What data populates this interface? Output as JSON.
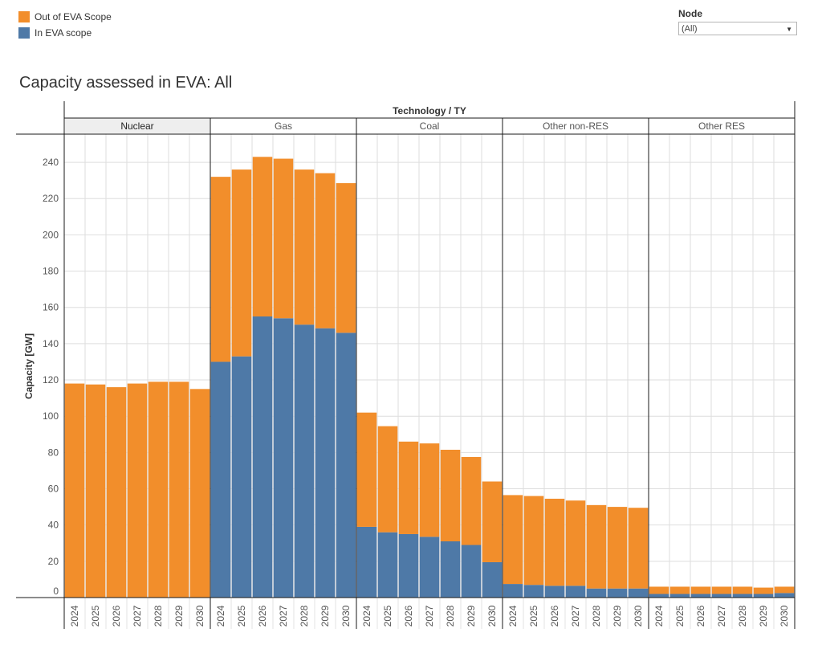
{
  "legend": {
    "items": [
      {
        "label": "Out of EVA Scope",
        "color": "#f28e2b"
      },
      {
        "label": "In EVA scope",
        "color": "#4e79a7"
      }
    ]
  },
  "filter": {
    "label": "Node",
    "value": "(All)",
    "icon": "dropdown-arrow-icon"
  },
  "title": "Capacity assessed in EVA: All",
  "chart_data": {
    "type": "bar",
    "stacked": true,
    "header": "Technology / TY",
    "ylabel": "Capacity [GW]",
    "ylim": [
      0,
      255
    ],
    "yticks": [
      0,
      20,
      40,
      60,
      80,
      100,
      120,
      140,
      160,
      180,
      200,
      220,
      240
    ],
    "grid": true,
    "legend_position": "top-left",
    "groups": [
      "Nuclear",
      "Gas",
      "Coal",
      "Other non-RES",
      "Other RES"
    ],
    "highlighted_group": "Nuclear",
    "years": [
      "2024",
      "2025",
      "2026",
      "2027",
      "2028",
      "2029",
      "2030"
    ],
    "series": [
      {
        "name": "In EVA scope",
        "color": "#4e79a7",
        "values": [
          [
            0,
            0,
            0,
            0,
            0,
            0,
            0
          ],
          [
            130,
            133,
            155,
            154,
            150.5,
            148.5,
            146
          ],
          [
            39,
            36,
            35,
            33.5,
            31,
            29,
            19.5
          ],
          [
            7.5,
            7,
            6.5,
            6.5,
            5,
            5,
            5
          ],
          [
            2,
            2,
            2,
            2,
            2,
            2,
            2.5
          ]
        ]
      },
      {
        "name": "Out of EVA Scope",
        "color": "#f28e2b",
        "values": [
          [
            118,
            117.5,
            116,
            118,
            119,
            119,
            115
          ],
          [
            102,
            103,
            88,
            88,
            85.5,
            85.5,
            82.5
          ],
          [
            63,
            58.5,
            51,
            51.5,
            50.5,
            48.5,
            44.5
          ],
          [
            49,
            49,
            48,
            47,
            46,
            45,
            44.5
          ],
          [
            4,
            4,
            4,
            4,
            4,
            3.5,
            3.5
          ]
        ]
      }
    ]
  }
}
